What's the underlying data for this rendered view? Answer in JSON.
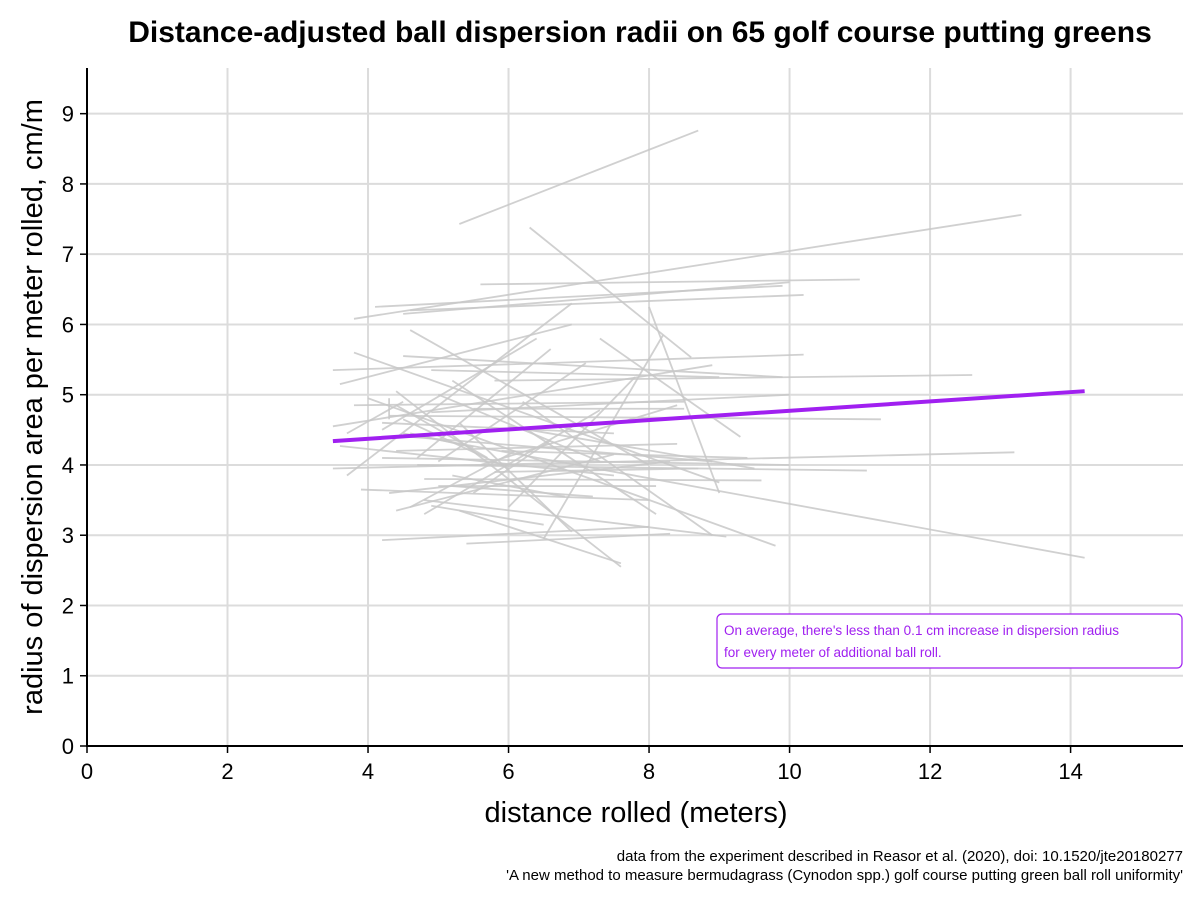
{
  "chart_data": {
    "type": "line",
    "title": "Distance-adjusted ball dispersion radii on 65 golf course putting greens",
    "xlabel": "distance rolled (meters)",
    "ylabel": "radius of dispersion area per meter rolled, cm/m",
    "xlim": [
      0,
      15.6
    ],
    "ylim": [
      0,
      9.65
    ],
    "x_ticks": [
      0,
      2,
      4,
      6,
      8,
      10,
      12,
      14
    ],
    "y_ticks": [
      0,
      1,
      2,
      3,
      4,
      5,
      6,
      7,
      8,
      9
    ],
    "grid": true,
    "trend_line": {
      "x": [
        3.5,
        14.2
      ],
      "y": [
        4.34,
        5.05
      ],
      "color": "#a020f0"
    },
    "greens": [
      [
        [
          5.3,
          7.43
        ],
        [
          8.7,
          8.76
        ]
      ],
      [
        [
          6.3,
          7.38
        ],
        [
          8.6,
          5.53
        ]
      ],
      [
        [
          3.8,
          6.08
        ],
        [
          13.3,
          7.56
        ]
      ],
      [
        [
          4.1,
          6.25
        ],
        [
          9.9,
          6.55
        ]
      ],
      [
        [
          4.5,
          6.15
        ],
        [
          10.0,
          6.6
        ]
      ],
      [
        [
          5.6,
          6.57
        ],
        [
          11.0,
          6.64
        ]
      ],
      [
        [
          4.6,
          6.2
        ],
        [
          10.2,
          6.42
        ]
      ],
      [
        [
          3.5,
          5.35
        ],
        [
          10.2,
          5.57
        ]
      ],
      [
        [
          3.8,
          5.6
        ],
        [
          9.0,
          3.75
        ]
      ],
      [
        [
          4.5,
          5.55
        ],
        [
          9.9,
          5.25
        ]
      ],
      [
        [
          4.6,
          5.92
        ],
        [
          8.0,
          4.0
        ]
      ],
      [
        [
          3.6,
          5.15
        ],
        [
          6.9,
          6.0
        ]
      ],
      [
        [
          6.9,
          6.3
        ],
        [
          3.7,
          3.85
        ]
      ],
      [
        [
          6.5,
          2.95
        ],
        [
          8.2,
          5.85
        ]
      ],
      [
        [
          7.3,
          5.8
        ],
        [
          9.3,
          4.4
        ]
      ],
      [
        [
          8.0,
          6.25
        ],
        [
          9.0,
          3.6
        ]
      ],
      [
        [
          3.5,
          4.55
        ],
        [
          8.9,
          5.42
        ]
      ],
      [
        [
          4.9,
          5.35
        ],
        [
          9.0,
          5.25
        ]
      ],
      [
        [
          5.8,
          5.2
        ],
        [
          12.6,
          5.28
        ]
      ],
      [
        [
          3.8,
          4.85
        ],
        [
          8.5,
          4.9
        ]
      ],
      [
        [
          4.3,
          4.7
        ],
        [
          11.3,
          4.65
        ]
      ],
      [
        [
          4.9,
          4.75
        ],
        [
          10.0,
          5.0
        ]
      ],
      [
        [
          4.5,
          4.45
        ],
        [
          14.2,
          2.68
        ]
      ],
      [
        [
          4.7,
          4.0
        ],
        [
          11.1,
          3.92
        ]
      ],
      [
        [
          3.5,
          3.95
        ],
        [
          13.2,
          4.18
        ]
      ],
      [
        [
          4.2,
          4.1
        ],
        [
          10.0,
          4.0
        ]
      ],
      [
        [
          4.8,
          3.8
        ],
        [
          9.6,
          3.78
        ]
      ],
      [
        [
          3.9,
          3.65
        ],
        [
          8.0,
          3.5
        ]
      ],
      [
        [
          4.2,
          2.93
        ],
        [
          8.0,
          3.12
        ]
      ],
      [
        [
          4.8,
          3.5
        ],
        [
          9.1,
          2.98
        ]
      ],
      [
        [
          5.3,
          3.35
        ],
        [
          7.6,
          2.6
        ]
      ],
      [
        [
          5.4,
          2.88
        ],
        [
          8.3,
          3.02
        ]
      ],
      [
        [
          4.4,
          3.35
        ],
        [
          7.5,
          4.15
        ]
      ],
      [
        [
          4.8,
          3.3
        ],
        [
          7.3,
          4.78
        ]
      ],
      [
        [
          3.6,
          4.27
        ],
        [
          7.5,
          3.85
        ]
      ],
      [
        [
          4.0,
          4.95
        ],
        [
          9.8,
          2.85
        ]
      ],
      [
        [
          4.6,
          4.4
        ],
        [
          8.9,
          4.05
        ]
      ],
      [
        [
          5.0,
          3.7
        ],
        [
          8.1,
          3.7
        ]
      ],
      [
        [
          4.4,
          4.2
        ],
        [
          8.4,
          4.3
        ]
      ],
      [
        [
          5.0,
          4.05
        ],
        [
          7.1,
          5.45
        ]
      ],
      [
        [
          4.2,
          4.5
        ],
        [
          6.4,
          5.8
        ]
      ],
      [
        [
          4.4,
          5.05
        ],
        [
          7.6,
          2.55
        ]
      ],
      [
        [
          5.2,
          5.2
        ],
        [
          8.1,
          3.3
        ]
      ],
      [
        [
          6.0,
          3.4
        ],
        [
          7.8,
          5.25
        ]
      ],
      [
        [
          5.5,
          4.8
        ],
        [
          8.5,
          4.8
        ]
      ],
      [
        [
          6.0,
          4.55
        ],
        [
          9.5,
          3.95
        ]
      ],
      [
        [
          4.2,
          4.6
        ],
        [
          7.5,
          4.45
        ]
      ],
      [
        [
          5.2,
          3.7
        ],
        [
          7.2,
          3.55
        ]
      ],
      [
        [
          5.8,
          3.9
        ],
        [
          8.7,
          3.95
        ]
      ],
      [
        [
          5.9,
          4.2
        ],
        [
          9.4,
          4.1
        ]
      ],
      [
        [
          4.9,
          3.42
        ],
        [
          6.5,
          3.15
        ]
      ],
      [
        [
          4.6,
          4.45
        ],
        [
          5.5,
          4.25
        ]
      ],
      [
        [
          4.3,
          3.6
        ],
        [
          8.3,
          4.05
        ]
      ],
      [
        [
          5.0,
          5.0
        ],
        [
          7.3,
          4.05
        ]
      ],
      [
        [
          5.3,
          4.6
        ],
        [
          6.9,
          3.05
        ]
      ],
      [
        [
          6.2,
          4.9
        ],
        [
          8.9,
          3.0
        ]
      ],
      [
        [
          5.2,
          3.85
        ],
        [
          6.8,
          3.55
        ]
      ],
      [
        [
          4.7,
          4.1
        ],
        [
          6.6,
          5.65
        ]
      ],
      [
        [
          4.4,
          4.85
        ],
        [
          5.7,
          4.1
        ]
      ],
      [
        [
          5.6,
          4.0
        ],
        [
          8.4,
          4.85
        ]
      ],
      [
        [
          4.5,
          4.65
        ],
        [
          6.0,
          3.95
        ]
      ],
      [
        [
          3.7,
          4.45
        ],
        [
          4.5,
          4.9
        ]
      ],
      [
        [
          4.6,
          3.4
        ],
        [
          6.1,
          4.2
        ]
      ],
      [
        [
          5.5,
          3.6
        ],
        [
          6.6,
          4.35
        ]
      ],
      [
        [
          4.3,
          4.95
        ],
        [
          4.3,
          4.65
        ]
      ]
    ],
    "annotation": "On average, there's less than 0.1 cm increase in dispersion radius for every meter of additional ball roll.",
    "annotation_lines": [
      "On average, there's less than 0.1 cm increase in dispersion radius",
      "for every meter of additional ball roll."
    ],
    "caption_lines": [
      "data from the experiment described in Reasor et al. (2020), doi: 10.1520/jte20180277",
      "'A new method to measure bermudagrass (Cynodon spp.) golf course putting green ball roll uniformity'"
    ],
    "colors": {
      "trend": "#a020f0",
      "greens": "#c8c8c8",
      "grid": "#dcdcdc",
      "annotation": "#a020f0"
    }
  }
}
